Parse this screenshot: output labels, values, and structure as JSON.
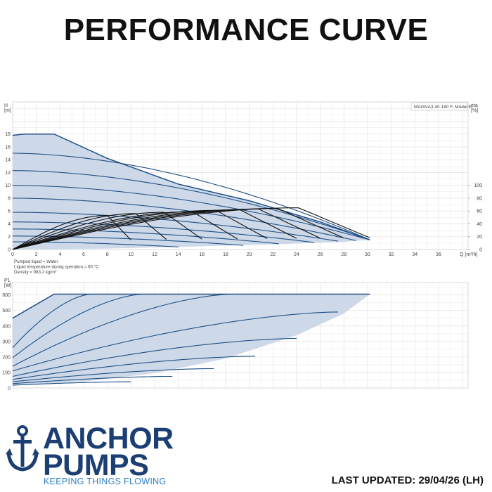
{
  "page": {
    "title": "PERFORMANCE CURVE",
    "last_updated": "LAST UPDATED: 29/04/26 (LH)"
  },
  "brand": {
    "line1": "ANCHOR",
    "line2": "PUMPS",
    "tagline": "KEEPING THINGS FLOWING",
    "color": "#1b3f73",
    "tagline_color": "#2d7fc1",
    "icon": "anchor-icon"
  },
  "chart_data": [
    {
      "type": "line",
      "legend_label": "MAGNA3 40-180 F, Model E",
      "y_label_1": "H",
      "y_label_2": "[m]",
      "y2_label_1": "eta",
      "y2_label_2": "[%]",
      "x_label": "Q [m³/h]",
      "x_ticks": [
        0,
        2,
        4,
        6,
        8,
        10,
        12,
        14,
        16,
        18,
        20,
        22,
        24,
        26,
        28,
        30,
        32,
        34,
        36
      ],
      "y_ticks": [
        0,
        2,
        4,
        6,
        8,
        10,
        12,
        14,
        16,
        18
      ],
      "y2_ticks": [
        0,
        20,
        40,
        60,
        80,
        100
      ],
      "xlim": [
        0,
        38.5
      ],
      "ylim": [
        0,
        23
      ],
      "y2lim": [
        0,
        230
      ],
      "grid": true,
      "fill_color": "#cdd9e8",
      "curve_color": "#1f4f86",
      "eff_color": "#111111",
      "envelope": [
        [
          0,
          17.8
        ],
        [
          1,
          18
        ],
        [
          3.5,
          18
        ],
        [
          8,
          14.2
        ],
        [
          14,
          10.2
        ],
        [
          20,
          7.6
        ],
        [
          26,
          4.3
        ],
        [
          30.2,
          1.5
        ],
        [
          28,
          1.2
        ],
        [
          22,
          0.8
        ],
        [
          14,
          0.4
        ],
        [
          8,
          0.15
        ],
        [
          0,
          0
        ]
      ],
      "head_curves": [
        {
          "h0": 15,
          "qmax": 30.2,
          "hend": 1.5
        },
        {
          "h0": 12.3,
          "qmax": 30.2,
          "hend": 1.5
        },
        {
          "h0": 10,
          "qmax": 30.2,
          "hend": 1.5
        },
        {
          "h0": 8,
          "qmax": 29,
          "hend": 1.4
        },
        {
          "h0": 5.8,
          "qmax": 27.5,
          "hend": 1.3
        },
        {
          "h0": 4.3,
          "qmax": 25.5,
          "hend": 1.1
        },
        {
          "h0": 3.2,
          "qmax": 22.5,
          "hend": 0.9
        },
        {
          "h0": 2.1,
          "qmax": 19.5,
          "hend": 0.65
        },
        {
          "h0": 1.2,
          "qmax": 14,
          "hend": 0.4
        }
      ],
      "efficiency_curves": [
        {
          "qmax": 30.2,
          "peak": 65
        },
        {
          "qmax": 28,
          "peak": 64
        },
        {
          "qmax": 26,
          "peak": 63
        },
        {
          "qmax": 24,
          "peak": 62
        },
        {
          "qmax": 21.5,
          "peak": 61
        },
        {
          "qmax": 19,
          "peak": 59
        },
        {
          "qmax": 16,
          "peak": 58
        },
        {
          "qmax": 13,
          "peak": 56
        },
        {
          "qmax": 10,
          "peak": 53
        }
      ],
      "annotations": [
        "Pumped liquid = Water",
        "Liquid temperature during operation = 60 °C",
        "Density = 983.2 kg/m³"
      ]
    },
    {
      "type": "line",
      "y_label_1": "P1",
      "y_label_2": "[W]",
      "y_ticks": [
        0,
        100,
        200,
        300,
        400,
        500,
        600
      ],
      "ylim": [
        0,
        680
      ],
      "xlim": [
        0,
        38.5
      ],
      "grid": true,
      "envelope": [
        [
          0,
          450
        ],
        [
          3.5,
          605
        ],
        [
          30.2,
          605
        ],
        [
          28,
          480
        ],
        [
          24,
          340
        ],
        [
          18,
          190
        ],
        [
          12,
          95
        ],
        [
          6,
          42
        ],
        [
          0,
          15
        ]
      ],
      "power_curves": [
        {
          "start": 260,
          "qmax": 6.6,
          "end": 605
        },
        {
          "start": 195,
          "qmax": 11,
          "end": 605
        },
        {
          "start": 140,
          "qmax": 18.5,
          "end": 605
        },
        {
          "start": 110,
          "qmax": 27.5,
          "end": 490
        },
        {
          "start": 75,
          "qmax": 24,
          "end": 320
        },
        {
          "start": 55,
          "qmax": 20.5,
          "end": 205
        },
        {
          "start": 40,
          "qmax": 17,
          "end": 125
        },
        {
          "start": 28,
          "qmax": 13.5,
          "end": 75
        },
        {
          "start": 18,
          "qmax": 10,
          "end": 40
        }
      ]
    }
  ]
}
